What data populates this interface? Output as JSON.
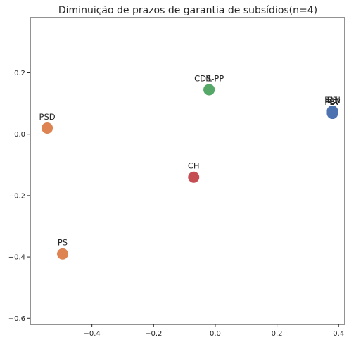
{
  "chart_data": {
    "type": "scatter",
    "title": "Diminuição de prazos de garantia de subsídios(n=4)",
    "xlabel": "",
    "ylabel": "",
    "xlim": [
      -0.6,
      0.42
    ],
    "ylim": [
      -0.62,
      0.38
    ],
    "xticks": [
      -0.4,
      -0.2,
      0.0,
      0.2,
      0.4
    ],
    "xtick_labels": [
      "−0.4",
      "−0.2",
      "0.0",
      "0.2",
      "0.4"
    ],
    "yticks": [
      -0.6,
      -0.4,
      -0.2,
      0.0,
      0.2
    ],
    "ytick_labels": [
      "−0.6",
      "−0.4",
      "−0.2",
      "0.0",
      "0.2"
    ],
    "grid": false,
    "points": [
      {
        "label": "PSD",
        "x": -0.545,
        "y": 0.02,
        "color": "#dd8452"
      },
      {
        "label": "PS",
        "x": -0.495,
        "y": -0.39,
        "color": "#dd8452"
      },
      {
        "label": "CH",
        "x": -0.07,
        "y": -0.14,
        "color": "#c44e52"
      },
      {
        "label": "IL",
        "x": -0.02,
        "y": 0.145,
        "color": "#55a868"
      },
      {
        "label": "CDS-PP",
        "x": -0.02,
        "y": 0.145,
        "color": "#55a868"
      },
      {
        "label": "BE",
        "x": 0.38,
        "y": 0.075,
        "color": "#4c72b0"
      },
      {
        "label": "PAN",
        "x": 0.38,
        "y": 0.075,
        "color": "#4c72b0"
      },
      {
        "label": "L",
        "x": 0.38,
        "y": 0.07,
        "color": "#4c72b0"
      },
      {
        "label": "PCP",
        "x": 0.38,
        "y": 0.07,
        "color": "#4c72b0"
      },
      {
        "label": "PEV",
        "x": 0.38,
        "y": 0.068,
        "color": "#4c72b0"
      }
    ]
  }
}
